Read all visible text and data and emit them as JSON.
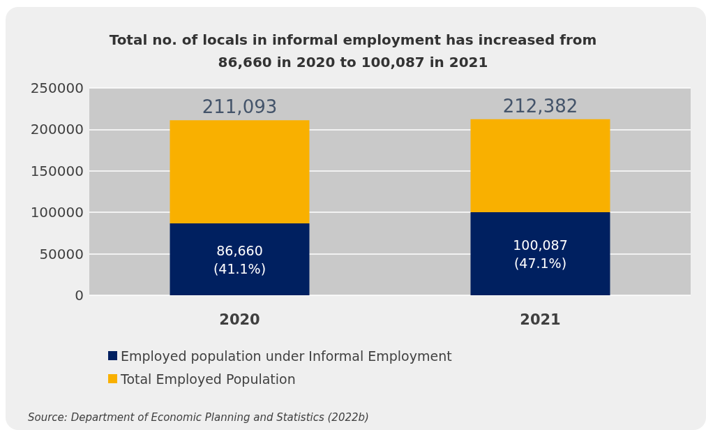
{
  "chart_data": {
    "type": "bar",
    "title": "Total no. of locals in informal employment has increased from\n86,660 in 2020 to 100,087 in 2021",
    "categories": [
      "2020",
      "2021"
    ],
    "series": [
      {
        "name": "Employed population under Informal Employment",
        "color": "#002060",
        "values": [
          86660,
          100087
        ],
        "value_labels": [
          "86,660\n(41.1%)",
          "100,087\n(47.1%)"
        ]
      },
      {
        "name": "Total Employed Population",
        "color": "#f9b000",
        "values": [
          124433,
          112295
        ]
      }
    ],
    "stacked": true,
    "totals": [
      "211,093",
      "212,382"
    ],
    "ylim": [
      0,
      250000
    ],
    "yticks": [
      0,
      50000,
      100000,
      150000,
      200000,
      250000
    ],
    "grid": "y",
    "legend": "bottom",
    "annotations": [
      "Source: Department of Economic Planning and Statistics (2022b)"
    ]
  }
}
